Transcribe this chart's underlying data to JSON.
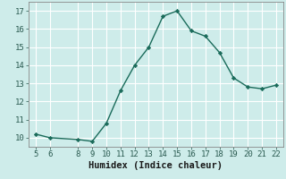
{
  "x": [
    5,
    6,
    8,
    9,
    10,
    11,
    12,
    13,
    14,
    15,
    16,
    17,
    18,
    19,
    20,
    21,
    22
  ],
  "y": [
    10.2,
    10.0,
    9.9,
    9.8,
    10.8,
    12.6,
    14.0,
    15.0,
    16.7,
    17.0,
    15.9,
    15.6,
    14.7,
    13.3,
    12.8,
    12.7,
    12.9
  ],
  "xlabel": "Humidex (Indice chaleur)",
  "bg_color": "#ceecea",
  "line_color": "#1a6b5a",
  "marker_color": "#1a6b5a",
  "grid_color": "#ffffff",
  "xlim": [
    4.5,
    22.5
  ],
  "ylim": [
    9.5,
    17.5
  ],
  "xticks": [
    5,
    6,
    8,
    9,
    10,
    11,
    12,
    13,
    14,
    15,
    16,
    17,
    18,
    19,
    20,
    21,
    22
  ],
  "yticks": [
    10,
    11,
    12,
    13,
    14,
    15,
    16,
    17
  ],
  "xlabel_fontsize": 7.5,
  "tick_fontsize": 6.5
}
